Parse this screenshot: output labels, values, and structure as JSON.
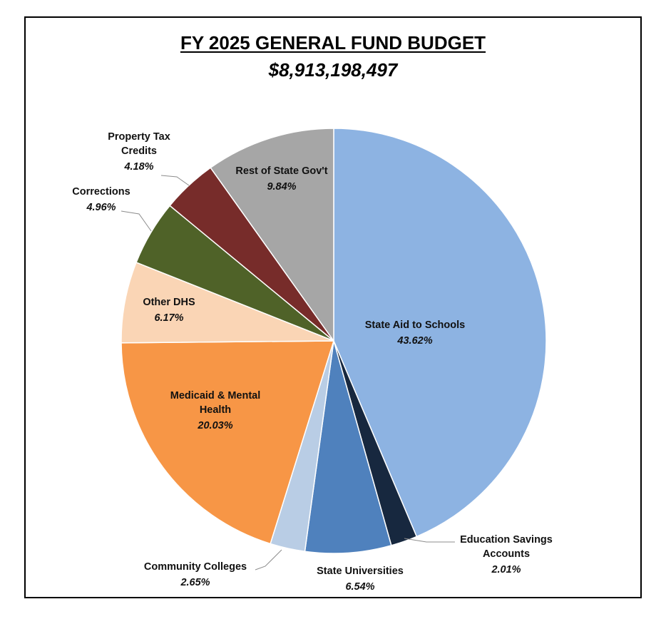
{
  "header": {
    "title": "FY 2025 GENERAL FUND BUDGET",
    "subtitle": "$8,913,198,497"
  },
  "chart_data": {
    "type": "pie",
    "title": "FY 2025 GENERAL FUND BUDGET",
    "subtitle": "$8,913,198,497",
    "start_angle_deg": 0,
    "direction": "clockwise",
    "slices": [
      {
        "label": "State Aid to Schools",
        "value": 43.62,
        "display": "43.62%",
        "color": "#8DB3E2"
      },
      {
        "label": "Education Savings Accounts",
        "value": 2.01,
        "display": "2.01%",
        "color": "#17283F"
      },
      {
        "label": "State Universities",
        "value": 6.54,
        "display": "6.54%",
        "color": "#4F81BD"
      },
      {
        "label": "Community Colleges",
        "value": 2.65,
        "display": "2.65%",
        "color": "#B9CDE5"
      },
      {
        "label": "Medicaid & Mental Health",
        "value": 20.03,
        "display": "20.03%",
        "color": "#F79646"
      },
      {
        "label": "Other DHS",
        "value": 6.17,
        "display": "6.17%",
        "color": "#FAD5B5"
      },
      {
        "label": "Corrections",
        "value": 4.96,
        "display": "4.96%",
        "color": "#4F6228"
      },
      {
        "label": "Property Tax Credits",
        "value": 4.18,
        "display": "4.18%",
        "color": "#772C2A"
      },
      {
        "label": "Rest of State Gov't",
        "value": 9.84,
        "display": "9.84%",
        "color": "#A6A6A6"
      }
    ]
  }
}
